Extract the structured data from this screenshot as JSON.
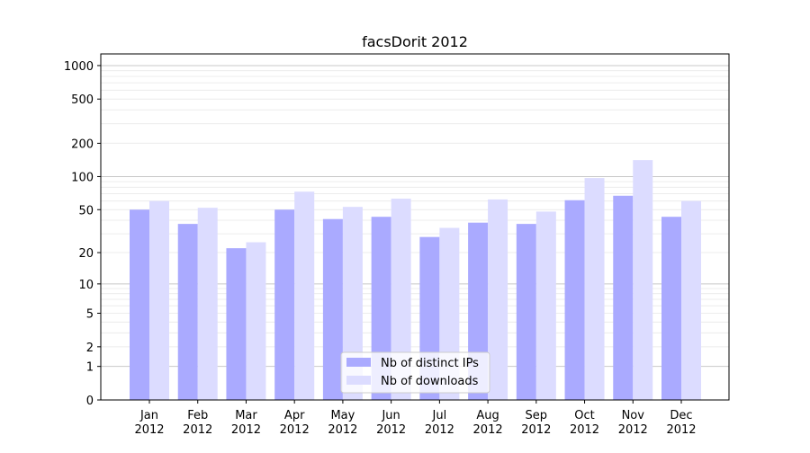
{
  "chart_data": {
    "type": "bar",
    "title": "facsDorit 2012",
    "xlabel": "",
    "ylabel": "",
    "yscale": "symlog",
    "ylim": [
      0,
      1270
    ],
    "yticks": [
      0,
      1,
      2,
      5,
      10,
      20,
      50,
      100,
      200,
      500,
      1000
    ],
    "grid": true,
    "legend_position": "lower center",
    "categories": [
      "Jan\n2012",
      "Feb\n2012",
      "Mar\n2012",
      "Apr\n2012",
      "May\n2012",
      "Jun\n2012",
      "Jul\n2012",
      "Aug\n2012",
      "Sep\n2012",
      "Oct\n2012",
      "Nov\n2012",
      "Dec\n2012"
    ],
    "series": [
      {
        "name": "Nb of distinct IPs",
        "color": "#aaaaff",
        "values": [
          50,
          37,
          22,
          50,
          41,
          43,
          28,
          38,
          37,
          61,
          67,
          43
        ]
      },
      {
        "name": "Nb of downloads",
        "color": "#dcdcff",
        "values": [
          60,
          52,
          25,
          73,
          53,
          63,
          34,
          62,
          48,
          97,
          141,
          60
        ]
      }
    ]
  }
}
